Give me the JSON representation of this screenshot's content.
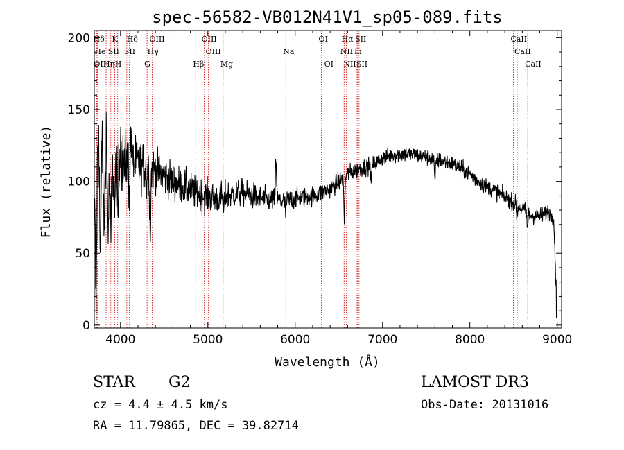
{
  "chart_data": {
    "type": "line",
    "title": "spec-56582-VB012N41V1_sp05-089.fits",
    "xlabel": "Wavelength (Å)",
    "ylabel": "Flux (relative)",
    "xlim": [
      3700,
      9050
    ],
    "ylim": [
      -2,
      205
    ],
    "xticks": [
      4000,
      5000,
      6000,
      7000,
      8000,
      9000
    ],
    "yticks": [
      0,
      50,
      100,
      150,
      200
    ],
    "xtick_labels": [
      "4000",
      "5000",
      "6000",
      "7000",
      "8000",
      "9000"
    ],
    "ytick_labels": [
      "0",
      "50",
      "100",
      "150",
      "200"
    ],
    "grid": false,
    "series": [
      {
        "name": "spectrum",
        "continuum": [
          [
            3700,
            75
          ],
          [
            3800,
            90
          ],
          [
            3900,
            105
          ],
          [
            4000,
            112
          ],
          [
            4100,
            115
          ],
          [
            4200,
            112
          ],
          [
            4300,
            110
          ],
          [
            4400,
            108
          ],
          [
            4500,
            104
          ],
          [
            4600,
            100
          ],
          [
            4700,
            97
          ],
          [
            4800,
            94
          ],
          [
            4900,
            91
          ],
          [
            5000,
            89
          ],
          [
            5100,
            88
          ],
          [
            5200,
            90
          ],
          [
            5300,
            91
          ],
          [
            5400,
            92
          ],
          [
            5500,
            90
          ],
          [
            5600,
            88
          ],
          [
            5700,
            87
          ],
          [
            5800,
            87
          ],
          [
            5900,
            86
          ],
          [
            6000,
            88
          ],
          [
            6100,
            89
          ],
          [
            6200,
            90
          ],
          [
            6300,
            92
          ],
          [
            6400,
            95
          ],
          [
            6500,
            100
          ],
          [
            6600,
            105
          ],
          [
            6700,
            108
          ],
          [
            6800,
            110
          ],
          [
            6900,
            112
          ],
          [
            7000,
            116
          ],
          [
            7100,
            118
          ],
          [
            7200,
            119
          ],
          [
            7300,
            119
          ],
          [
            7400,
            118
          ],
          [
            7500,
            117
          ],
          [
            7600,
            115
          ],
          [
            7700,
            114
          ],
          [
            7800,
            112
          ],
          [
            7900,
            109
          ],
          [
            8000,
            105
          ],
          [
            8100,
            100
          ],
          [
            8200,
            96
          ],
          [
            8300,
            93
          ],
          [
            8400,
            89
          ],
          [
            8500,
            85
          ],
          [
            8600,
            81
          ],
          [
            8700,
            76
          ],
          [
            8800,
            76
          ],
          [
            8900,
            79
          ],
          [
            8960,
            75
          ],
          [
            9000,
            5
          ]
        ],
        "features": [
          [
            3720,
            -70
          ],
          [
            3735,
            30
          ],
          [
            3750,
            60
          ],
          [
            3770,
            -40
          ],
          [
            3790,
            50
          ],
          [
            3810,
            -20
          ],
          [
            3836,
            40
          ],
          [
            3860,
            -30
          ],
          [
            3889,
            -45
          ],
          [
            3934,
            -25
          ],
          [
            3970,
            -35
          ],
          [
            4000,
            25
          ],
          [
            4102,
            -25
          ],
          [
            4120,
            20
          ],
          [
            4300,
            -12
          ],
          [
            4340,
            -45
          ],
          [
            5183,
            -10
          ],
          [
            5780,
            30
          ],
          [
            5890,
            -8
          ],
          [
            6563,
            -30
          ],
          [
            6870,
            -12
          ],
          [
            7600,
            -15
          ],
          [
            8540,
            -8
          ],
          [
            8660,
            -10
          ]
        ],
        "noise": [
          [
            3700,
            22
          ],
          [
            4000,
            16
          ],
          [
            4400,
            10
          ],
          [
            5000,
            8
          ],
          [
            6000,
            5
          ],
          [
            7000,
            4
          ],
          [
            9000,
            4
          ]
        ]
      }
    ],
    "lines": [
      {
        "label": "Hδ",
        "wave": 3720,
        "row": 0,
        "align": "left"
      },
      {
        "label": "He",
        "wave": 3735,
        "row": 1,
        "align": "left"
      },
      {
        "label": "OII",
        "wave": 3727,
        "row": 2,
        "align": "left"
      },
      {
        "label": "K",
        "wave": 3934,
        "row": 0,
        "align": "left"
      },
      {
        "label": "SII",
        "wave": 3889,
        "row": 1,
        "align": "left"
      },
      {
        "label": "Hη",
        "wave": 3835,
        "row": 2,
        "align": "left"
      },
      {
        "label": "H",
        "wave": 3968,
        "row": 2,
        "align": "left"
      },
      {
        "label": "Hδ",
        "wave": 4102,
        "row": 0,
        "align": "left"
      },
      {
        "label": "SII",
        "wave": 4072,
        "row": 1,
        "align": "left"
      },
      {
        "label": "OIII",
        "wave": 4363,
        "row": 0,
        "align": "left"
      },
      {
        "label": "Hγ",
        "wave": 4340,
        "row": 1,
        "align": "left"
      },
      {
        "label": "G",
        "wave": 4304,
        "row": 2,
        "align": "left"
      },
      {
        "label": "OIII",
        "wave": 4959,
        "row": 0,
        "align": "left"
      },
      {
        "label": "OIII",
        "wave": 5007,
        "row": 1,
        "align": "left"
      },
      {
        "label": "Hβ",
        "wave": 4861,
        "row": 2,
        "align": "left"
      },
      {
        "label": "Mg",
        "wave": 5175,
        "row": 2,
        "align": "left"
      },
      {
        "label": "Na",
        "wave": 5893,
        "row": 1,
        "align": "left"
      },
      {
        "label": "OI",
        "wave": 6300,
        "row": 0,
        "align": "left"
      },
      {
        "label": "OI",
        "wave": 6364,
        "row": 2,
        "align": "left"
      },
      {
        "label": "Hα",
        "wave": 6563,
        "row": 0,
        "align": "left"
      },
      {
        "label": "SII",
        "wave": 6717,
        "row": 0,
        "align": "left"
      },
      {
        "label": "NII",
        "wave": 6548,
        "row": 1,
        "align": "left"
      },
      {
        "label": "Li",
        "wave": 6708,
        "row": 1,
        "align": "left"
      },
      {
        "label": "NII",
        "wave": 6584,
        "row": 2,
        "align": "left"
      },
      {
        "label": "SII",
        "wave": 6731,
        "row": 2,
        "align": "left"
      },
      {
        "label": "CaII",
        "wave": 8498,
        "row": 0,
        "align": "left"
      },
      {
        "label": "CaII",
        "wave": 8542,
        "row": 1,
        "align": "left"
      },
      {
        "label": "CaII",
        "wave": 8662,
        "row": 2,
        "align": "left"
      }
    ]
  },
  "info": {
    "class_label": "STAR",
    "subclass": "G2",
    "survey": "LAMOST DR3",
    "cz": "cz = 4.4 ± 4.5 km/s",
    "obs_date": "Obs-Date: 20131016",
    "coords": "RA =  11.79865, DEC =  39.82714"
  },
  "colors": {
    "line_marker": "#cc0000",
    "spectrum": "#000000",
    "axes": "#000000",
    "background": "#ffffff"
  }
}
